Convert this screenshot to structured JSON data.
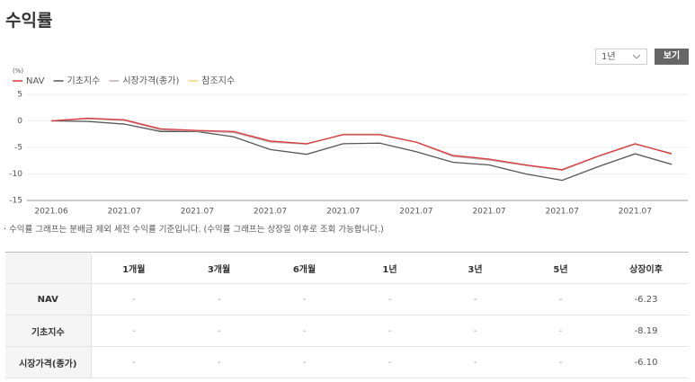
{
  "header": {
    "title": "수익률"
  },
  "controls": {
    "period": "1년",
    "button": "보기"
  },
  "chart_data": {
    "type": "line",
    "y_unit": "(%)",
    "categories": [
      "2021.06",
      null,
      "2021.07",
      null,
      "2021.07",
      null,
      "2021.07",
      null,
      "2021.07",
      null,
      "2021.07",
      null,
      "2021.07",
      null,
      "2021.07",
      null,
      "2021.07",
      null
    ],
    "series": [
      {
        "name": "NAV",
        "color": "#d9383a",
        "values": [
          0,
          0.5,
          0.2,
          -1.5,
          -1.8,
          -2.0,
          -3.8,
          -4.3,
          -2.6,
          -2.6,
          -4.0,
          -6.5,
          -7.2,
          -8.3,
          -9.2,
          -6.6,
          -4.3,
          -6.23
        ]
      },
      {
        "name": "기초지수",
        "color": "#555555",
        "values": [
          0,
          -0.1,
          -0.6,
          -2.0,
          -2.0,
          -3.0,
          -5.4,
          -6.3,
          -4.3,
          -4.2,
          -5.8,
          -7.8,
          -8.3,
          -10.0,
          -11.2,
          -8.6,
          -6.2,
          -8.19
        ]
      },
      {
        "name": "시장가격(종가)",
        "color": "#c4aeb2",
        "values": [
          0,
          0.4,
          0.1,
          -1.7,
          -1.9,
          -2.2,
          -4.0,
          -4.4,
          -2.5,
          -2.5,
          -4.0,
          -6.7,
          -7.4,
          -8.4,
          -9.3,
          -6.7,
          -4.4,
          -6.1
        ]
      },
      {
        "name": "참조지수",
        "color": "#f2d27a",
        "values": [
          null,
          null,
          null,
          null,
          null,
          null,
          null,
          null,
          null,
          null,
          null,
          null,
          null,
          null,
          null,
          null,
          null,
          null
        ]
      }
    ],
    "ylim": [
      -15,
      5
    ],
    "yticks": [
      5,
      0,
      -5,
      -10,
      -15
    ],
    "grid": true
  },
  "note": "· 수익률 그래프는 분배금 제외 세전 수익률 기준입니다. (수익률 그래프는 상장일 이후로 조회 가능합니다.)",
  "table": {
    "header": [
      "1개월",
      "3개월",
      "6개월",
      "1년",
      "3년",
      "5년",
      "상장이후"
    ],
    "rows": [
      [
        "NAV",
        "-",
        "-",
        "-",
        "-",
        "-",
        "-",
        "-6.23"
      ],
      [
        "기초지수",
        "-",
        "-",
        "-",
        "-",
        "-",
        "-",
        "-8.19"
      ],
      [
        "시장가격(종가)",
        "-",
        "-",
        "-",
        "-",
        "-",
        "-",
        "-6.10"
      ]
    ]
  }
}
